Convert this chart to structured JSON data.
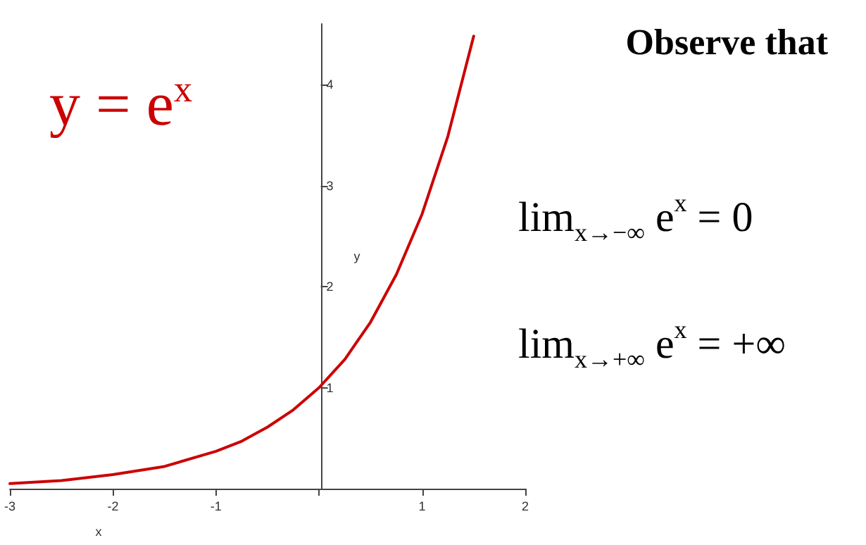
{
  "chart_data": {
    "type": "line",
    "title": "Observe that",
    "xlabel": "x",
    "ylabel": "y",
    "x": [
      -3,
      -2.5,
      -2,
      -1.5,
      -1,
      -0.75,
      -0.5,
      -0.25,
      0,
      0.25,
      0.5,
      0.75,
      1,
      1.25,
      1.5
    ],
    "series": [
      {
        "color": "#cc0000",
        "values": [
          0.05,
          0.08,
          0.14,
          0.22,
          0.37,
          0.47,
          0.61,
          0.78,
          1,
          1.28,
          1.65,
          2.12,
          2.72,
          3.49,
          4.48
        ]
      }
    ],
    "xlim": [
      -3,
      2
    ],
    "ylim": [
      0,
      4.6
    ],
    "xticks": [
      -3,
      -2,
      -1,
      {
        "value": 0,
        "label": null
      },
      1,
      2
    ],
    "yticks": [
      {
        "value": 0,
        "label": null
      },
      1,
      2,
      3,
      4
    ],
    "annotations": [
      "y = e$^{x}$",
      "lim$_{x→−∞}$ e$^{x}$ = 0",
      "lim$_{x→+∞}$ e$^{x}$ = +∞"
    ],
    "grid": false,
    "marker": "none",
    "line_style": "solid"
  }
}
